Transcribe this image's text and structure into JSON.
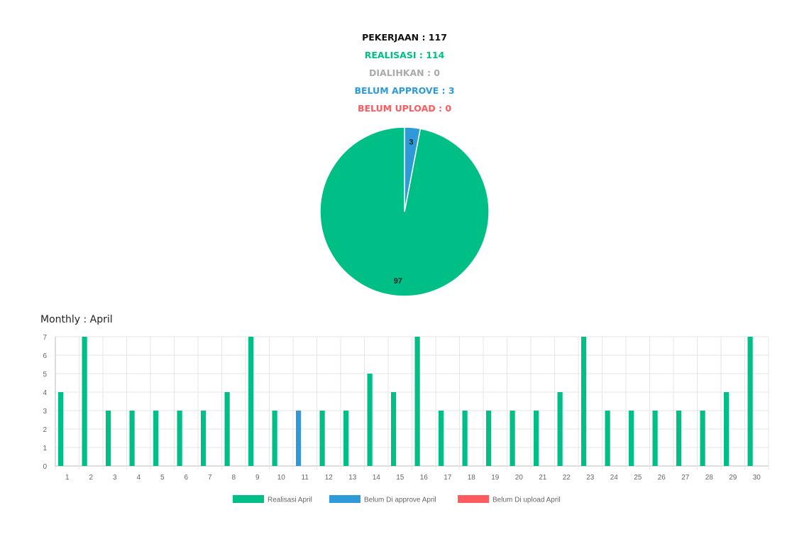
{
  "summary": {
    "pekerjaan": "PEKERJAAN : 117",
    "realisasi": "REALISASI : 114",
    "dialihkan": "DIALIHKAN : 0",
    "belum_approve": "BELUM APPROVE : 3",
    "belum_upload": "BELUM UPLOAD : 0"
  },
  "colors": {
    "realisasi": "#00bf86",
    "approve": "#2e9ad8",
    "upload": "#ff5a5f",
    "dialihkan": "#aaaaaa",
    "pekerjaan": "#111111"
  },
  "chart_data": [
    {
      "type": "pie",
      "slices": [
        {
          "label": "97",
          "value": 97,
          "color": "#00bf86"
        },
        {
          "label": "3",
          "value": 3,
          "color": "#2e9ad8"
        }
      ]
    },
    {
      "type": "bar",
      "title": "Monthly : April",
      "categories": [
        "1",
        "2",
        "3",
        "4",
        "5",
        "6",
        "7",
        "8",
        "9",
        "10",
        "11",
        "12",
        "13",
        "14",
        "15",
        "16",
        "17",
        "18",
        "19",
        "20",
        "21",
        "22",
        "23",
        "24",
        "25",
        "26",
        "27",
        "28",
        "29",
        "30"
      ],
      "series": [
        {
          "name": "Realisasi April",
          "color": "#00bf86",
          "values": [
            4,
            7,
            3,
            3,
            3,
            3,
            3,
            4,
            7,
            3,
            0,
            3,
            3,
            5,
            4,
            7,
            3,
            3,
            3,
            3,
            3,
            4,
            7,
            3,
            3,
            3,
            3,
            3,
            4,
            7
          ]
        },
        {
          "name": "Belum Di approve April",
          "color": "#2e9ad8",
          "values": [
            0,
            0,
            0,
            0,
            0,
            0,
            0,
            0,
            0,
            0,
            3,
            0,
            0,
            0,
            0,
            0,
            0,
            0,
            0,
            0,
            0,
            0,
            0,
            0,
            0,
            0,
            0,
            0,
            0,
            0
          ]
        },
        {
          "name": "Belum Di upload April",
          "color": "#ff5a5f",
          "values": [
            0,
            0,
            0,
            0,
            0,
            0,
            0,
            0,
            0,
            0,
            0,
            0,
            0,
            0,
            0,
            0,
            0,
            0,
            0,
            0,
            0,
            0,
            0,
            0,
            0,
            0,
            0,
            0,
            0,
            0
          ]
        }
      ],
      "ylim": [
        0,
        7
      ],
      "yticks": [
        0,
        1,
        2,
        3,
        4,
        5,
        6,
        7
      ],
      "grid": true,
      "legend": "bottom"
    }
  ]
}
